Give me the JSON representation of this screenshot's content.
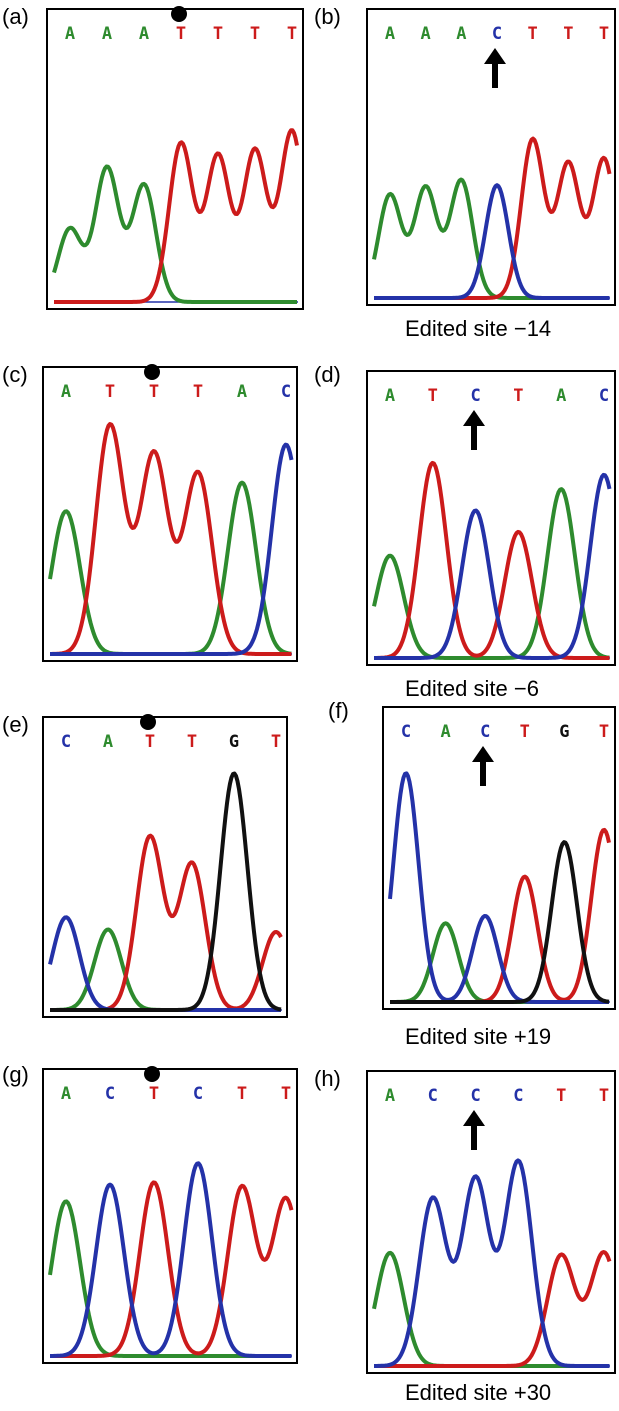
{
  "colors": {
    "A": "#2e8b2e",
    "T": "#cc1b1b",
    "C": "#2432a8",
    "G": "#111111",
    "frame": "#000000"
  },
  "panels": [
    {
      "id": "a",
      "label": "(a)",
      "sequence": [
        "A",
        "A",
        "A",
        "T",
        "T",
        "T",
        "T"
      ],
      "mark": "dot",
      "mark_index": 3,
      "caption": ""
    },
    {
      "id": "b",
      "label": "(b)",
      "sequence": [
        "A",
        "A",
        "A",
        "C",
        "T",
        "T",
        "T"
      ],
      "mark": "arrow",
      "mark_index": 3,
      "caption": "Edited site −14"
    },
    {
      "id": "c",
      "label": "(c)",
      "sequence": [
        "A",
        "T",
        "T",
        "T",
        "A",
        "C"
      ],
      "mark": "dot",
      "mark_index": 2,
      "caption": ""
    },
    {
      "id": "d",
      "label": "(d)",
      "sequence": [
        "A",
        "T",
        "C",
        "T",
        "A",
        "C"
      ],
      "mark": "arrow",
      "mark_index": 2,
      "caption": "Edited site −6"
    },
    {
      "id": "e",
      "label": "(e)",
      "sequence": [
        "C",
        "A",
        "T",
        "T",
        "G",
        "T"
      ],
      "mark": "dot",
      "mark_index": 2,
      "caption": ""
    },
    {
      "id": "f",
      "label": "(f)",
      "sequence": [
        "C",
        "A",
        "C",
        "T",
        "G",
        "T"
      ],
      "mark": "arrow",
      "mark_index": 2,
      "caption": "Edited site +19"
    },
    {
      "id": "g",
      "label": "(g)",
      "sequence": [
        "A",
        "C",
        "T",
        "C",
        "T",
        "T"
      ],
      "mark": "dot",
      "mark_index": 2,
      "caption": ""
    },
    {
      "id": "h",
      "label": "(h)",
      "sequence": [
        "A",
        "C",
        "C",
        "C",
        "T",
        "T"
      ],
      "mark": "arrow",
      "mark_index": 2,
      "caption": "Edited site +30"
    }
  ]
}
